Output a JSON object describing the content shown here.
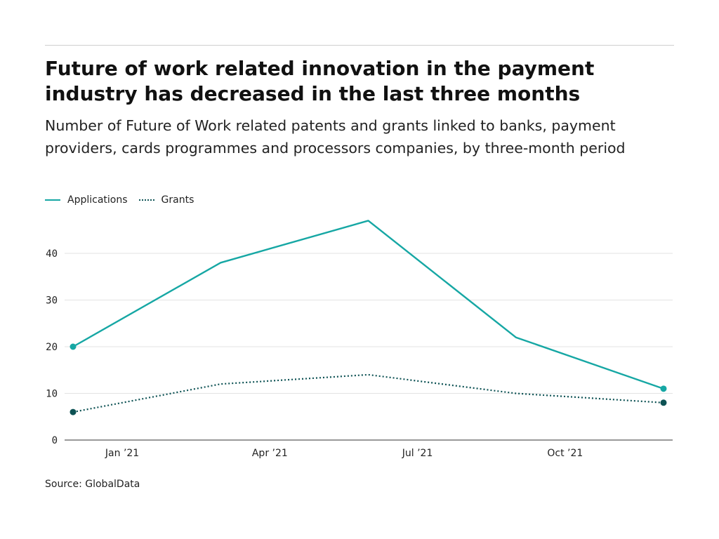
{
  "header": {
    "title": "Future of work related innovation in the payment industry has decreased in the last three months",
    "subtitle": "Number of Future of Work related patents and grants linked to banks, payment providers, cards programmes and processors companies, by three-month period"
  },
  "legend": {
    "applications_label": "Applications",
    "grants_label": "Grants"
  },
  "footer": {
    "source": "Source: GlobalData"
  },
  "colors": {
    "applications": "#16a7a4",
    "grants": "#0d5254",
    "grid": "#e3e3e3",
    "axis": "#333333"
  },
  "chart_data": {
    "type": "line",
    "x": [
      "2020-12",
      "2021-03",
      "2021-06",
      "2021-09",
      "2021-12"
    ],
    "x_tick_labels": [
      "Jan ’21",
      "Apr ’21",
      "Jul ’21",
      "Oct ’21"
    ],
    "x_tick_positions": [
      "2021-01",
      "2021-04",
      "2021-07",
      "2021-10"
    ],
    "series": [
      {
        "name": "Applications",
        "values": [
          20,
          38,
          47,
          22,
          11
        ],
        "style": "solid"
      },
      {
        "name": "Grants",
        "values": [
          6,
          12,
          14,
          10,
          8
        ],
        "style": "dotted"
      }
    ],
    "yticks": [
      0,
      10,
      20,
      30,
      40
    ],
    "ylim": [
      0,
      50
    ],
    "grid": true,
    "legend_position": "top-left",
    "endpoint_markers": true
  }
}
